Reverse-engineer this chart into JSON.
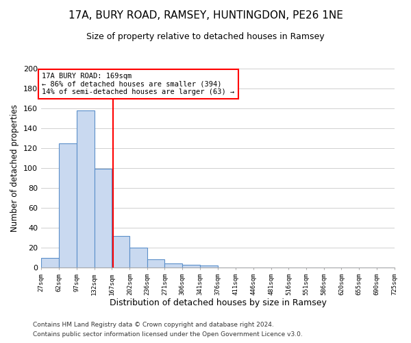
{
  "title": "17A, BURY ROAD, RAMSEY, HUNTINGDON, PE26 1NE",
  "subtitle": "Size of property relative to detached houses in Ramsey",
  "xlabel": "Distribution of detached houses by size in Ramsey",
  "ylabel": "Number of detached properties",
  "bin_edges": [
    27,
    62,
    97,
    132,
    167,
    202,
    236,
    271,
    306,
    341,
    376,
    411,
    446,
    481,
    516,
    551,
    586,
    620,
    655,
    690,
    725
  ],
  "bin_counts": [
    10,
    125,
    158,
    99,
    32,
    20,
    8,
    4,
    3,
    2,
    0,
    0,
    0,
    0,
    0,
    0,
    0,
    0,
    0,
    0
  ],
  "bar_color": "#c9d9f0",
  "bar_edge_color": "#5b8fc9",
  "red_line_x": 169,
  "ylim": [
    0,
    200
  ],
  "yticks": [
    0,
    20,
    40,
    60,
    80,
    100,
    120,
    140,
    160,
    180,
    200
  ],
  "annotation_box_text": [
    "17A BURY ROAD: 169sqm",
    "← 86% of detached houses are smaller (394)",
    "14% of semi-detached houses are larger (63) →"
  ],
  "footer_line1": "Contains HM Land Registry data © Crown copyright and database right 2024.",
  "footer_line2": "Contains public sector information licensed under the Open Government Licence v3.0.",
  "tick_labels": [
    "27sqm",
    "62sqm",
    "97sqm",
    "132sqm",
    "167sqm",
    "202sqm",
    "236sqm",
    "271sqm",
    "306sqm",
    "341sqm",
    "376sqm",
    "411sqm",
    "446sqm",
    "481sqm",
    "516sqm",
    "551sqm",
    "586sqm",
    "620sqm",
    "655sqm",
    "690sqm",
    "725sqm"
  ]
}
